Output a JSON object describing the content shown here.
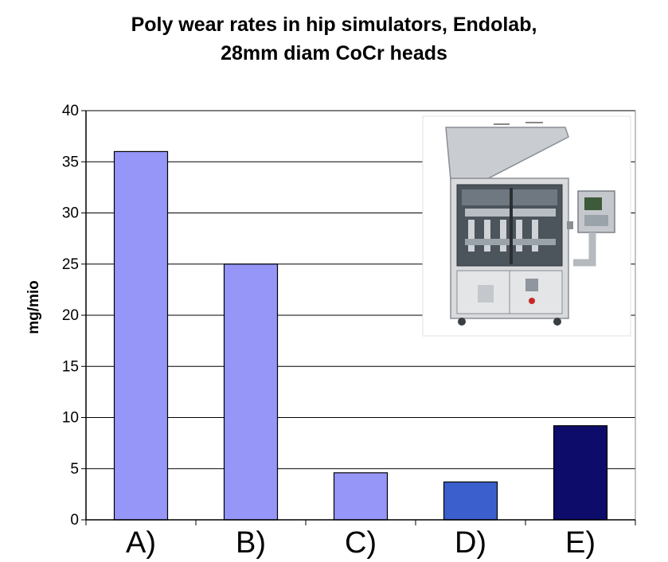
{
  "chart_data": {
    "type": "bar",
    "title": "Poly wear rates in hip simulators, Endolab,",
    "subtitle": "28mm diam CoCr heads",
    "xlabel": "",
    "ylabel": "mg/mio",
    "ylim": [
      0,
      40
    ],
    "yticks": [
      0,
      5,
      10,
      15,
      20,
      25,
      30,
      35,
      40
    ],
    "grid": true,
    "legend": "none",
    "categories": [
      "A)",
      "B)",
      "C)",
      "D)",
      "E)"
    ],
    "values": [
      36,
      25,
      4.6,
      3.7,
      9.2
    ],
    "bar_colors": [
      "#9596f7",
      "#9596f7",
      "#9596f7",
      "#3b5fcc",
      "#0e0c6a"
    ]
  },
  "inset_image": {
    "subject": "hip simulator machine"
  }
}
